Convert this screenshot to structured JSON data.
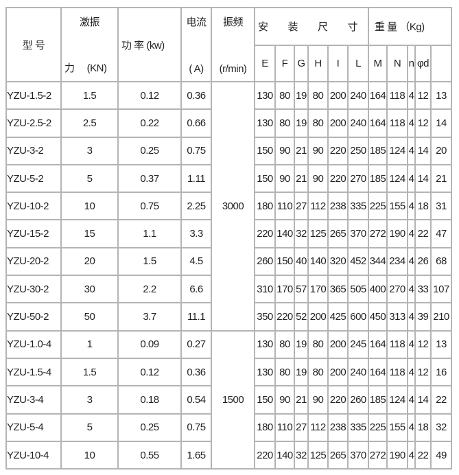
{
  "header": {
    "model": "型 号",
    "force_top": "激振",
    "force_bottom": "力 　(KN)",
    "power": "功 率 (kw)",
    "current_top": "电流",
    "current_bottom": "( A)",
    "freq_top": "振频",
    "freq_bottom": "(r/min)",
    "install": "安　　装　　尺　　寸",
    "weight": "重 量 （Kg)",
    "sub": [
      "E",
      "F",
      "G",
      "H",
      "I",
      "L",
      "M",
      "N",
      "n",
      "φd"
    ]
  },
  "groups": [
    {
      "frequency": "3000",
      "rows": [
        [
          "YZU-1.5-2",
          "1.5",
          "0.12",
          "0.36",
          "130",
          "80",
          "19",
          "80",
          "200",
          "240",
          "164",
          "118",
          "4",
          "12",
          "13"
        ],
        [
          "YZU-2.5-2",
          "2.5",
          "0.22",
          "0.66",
          "130",
          "80",
          "19",
          "80",
          "200",
          "240",
          "164",
          "118",
          "4",
          "12",
          "14"
        ],
        [
          "YZU-3-2",
          "3",
          "0.25",
          "0.75",
          "150",
          "90",
          "21",
          "90",
          "220",
          "250",
          "185",
          "124",
          "4",
          "14",
          "20"
        ],
        [
          "YZU-5-2",
          "5",
          "0.37",
          "1.11",
          "150",
          "90",
          "21",
          "90",
          "220",
          "270",
          "185",
          "124",
          "4",
          "14",
          "21"
        ],
        [
          "YZU-10-2",
          "10",
          "0.75",
          "2.25",
          "180",
          "110",
          "27",
          "112",
          "238",
          "335",
          "225",
          "155",
          "4",
          "18",
          "31"
        ],
        [
          "YZU-15-2",
          "15",
          "1.1",
          "3.3",
          "220",
          "140",
          "32",
          "125",
          "265",
          "370",
          "272",
          "190",
          "4",
          "22",
          "47"
        ],
        [
          "YZU-20-2",
          "20",
          "1.5",
          "4.5",
          "260",
          "150",
          "40",
          "140",
          "320",
          "452",
          "344",
          "234",
          "4",
          "26",
          "68"
        ],
        [
          "YZU-30-2",
          "30",
          "2.2",
          "6.6",
          "310",
          "170",
          "57",
          "170",
          "365",
          "505",
          "400",
          "270",
          "4",
          "33",
          "107"
        ],
        [
          "YZU-50-2",
          "50",
          "3.7",
          "11.1",
          "350",
          "220",
          "52",
          "200",
          "425",
          "600",
          "450",
          "313",
          "4",
          "39",
          "210"
        ]
      ]
    },
    {
      "frequency": "1500",
      "rows": [
        [
          "YZU-1.0-4",
          "1",
          "0.09",
          "0.27",
          "130",
          "80",
          "19",
          "80",
          "200",
          "245",
          "164",
          "118",
          "4",
          "12",
          "13"
        ],
        [
          "YZU-1.5-4",
          "1.5",
          "0.12",
          "0.36",
          "130",
          "80",
          "19",
          "80",
          "200",
          "240",
          "164",
          "118",
          "4",
          "12",
          "16"
        ],
        [
          "YZU-3-4",
          "3",
          "0.18",
          "0.54",
          "150",
          "90",
          "21",
          "90",
          "220",
          "260",
          "185",
          "124",
          "4",
          "14",
          "22"
        ],
        [
          "YZU-5-4",
          "5",
          "0.25",
          "0.75",
          "180",
          "110",
          "27",
          "112",
          "238",
          "335",
          "225",
          "155",
          "4",
          "18",
          "32"
        ],
        [
          "YZU-10-4",
          "10",
          "0.55",
          "1.65",
          "220",
          "140",
          "32",
          "125",
          "265",
          "370",
          "272",
          "190",
          "4",
          "22",
          "49"
        ]
      ]
    }
  ]
}
